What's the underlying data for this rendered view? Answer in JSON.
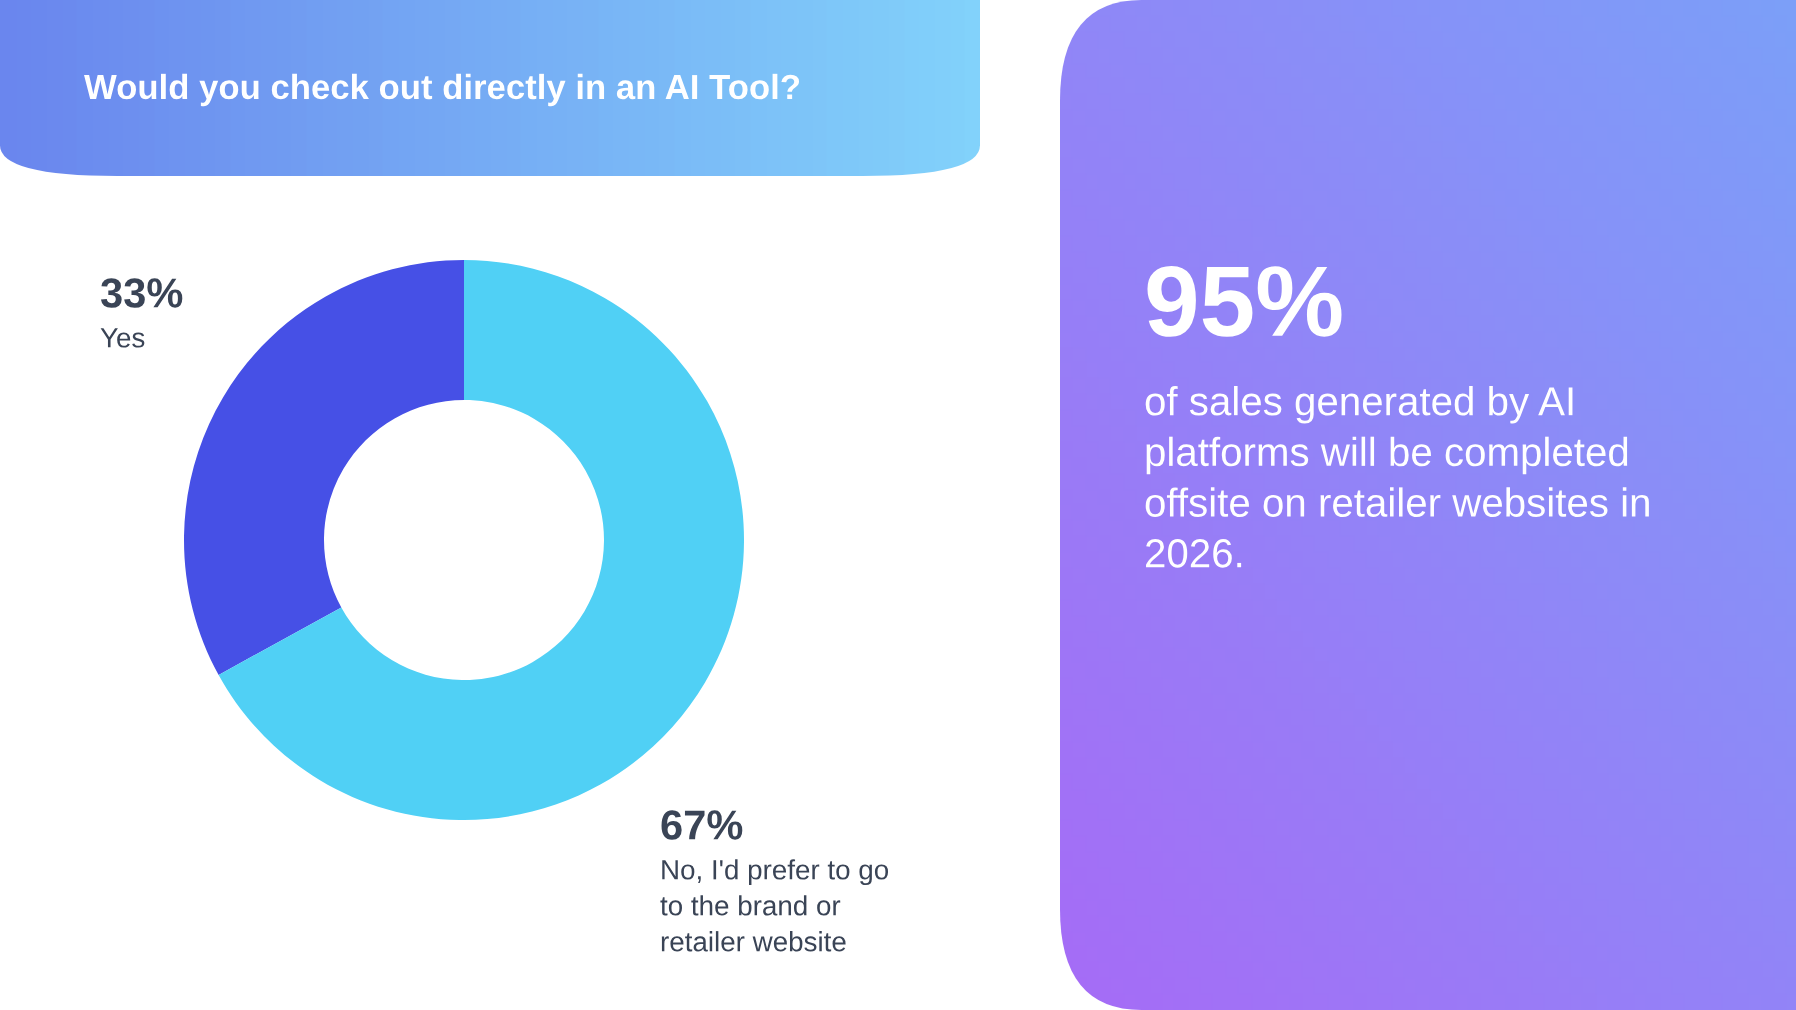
{
  "chart_data": [
    {
      "type": "donut",
      "title": "Would you check out directly in an AI Tool?",
      "categories": [
        "Yes",
        "No, I'd prefer to go to the brand or retailer website"
      ],
      "values": [
        33,
        67
      ],
      "colors": [
        "#4650e6",
        "#50d0f5"
      ],
      "value_labels": [
        "33%",
        "67%"
      ]
    },
    {
      "type": "other",
      "title": "95%",
      "annotations": [
        "of sales generated by AI platforms will be completed offsite on retailer websites in 2026."
      ]
    }
  ]
}
